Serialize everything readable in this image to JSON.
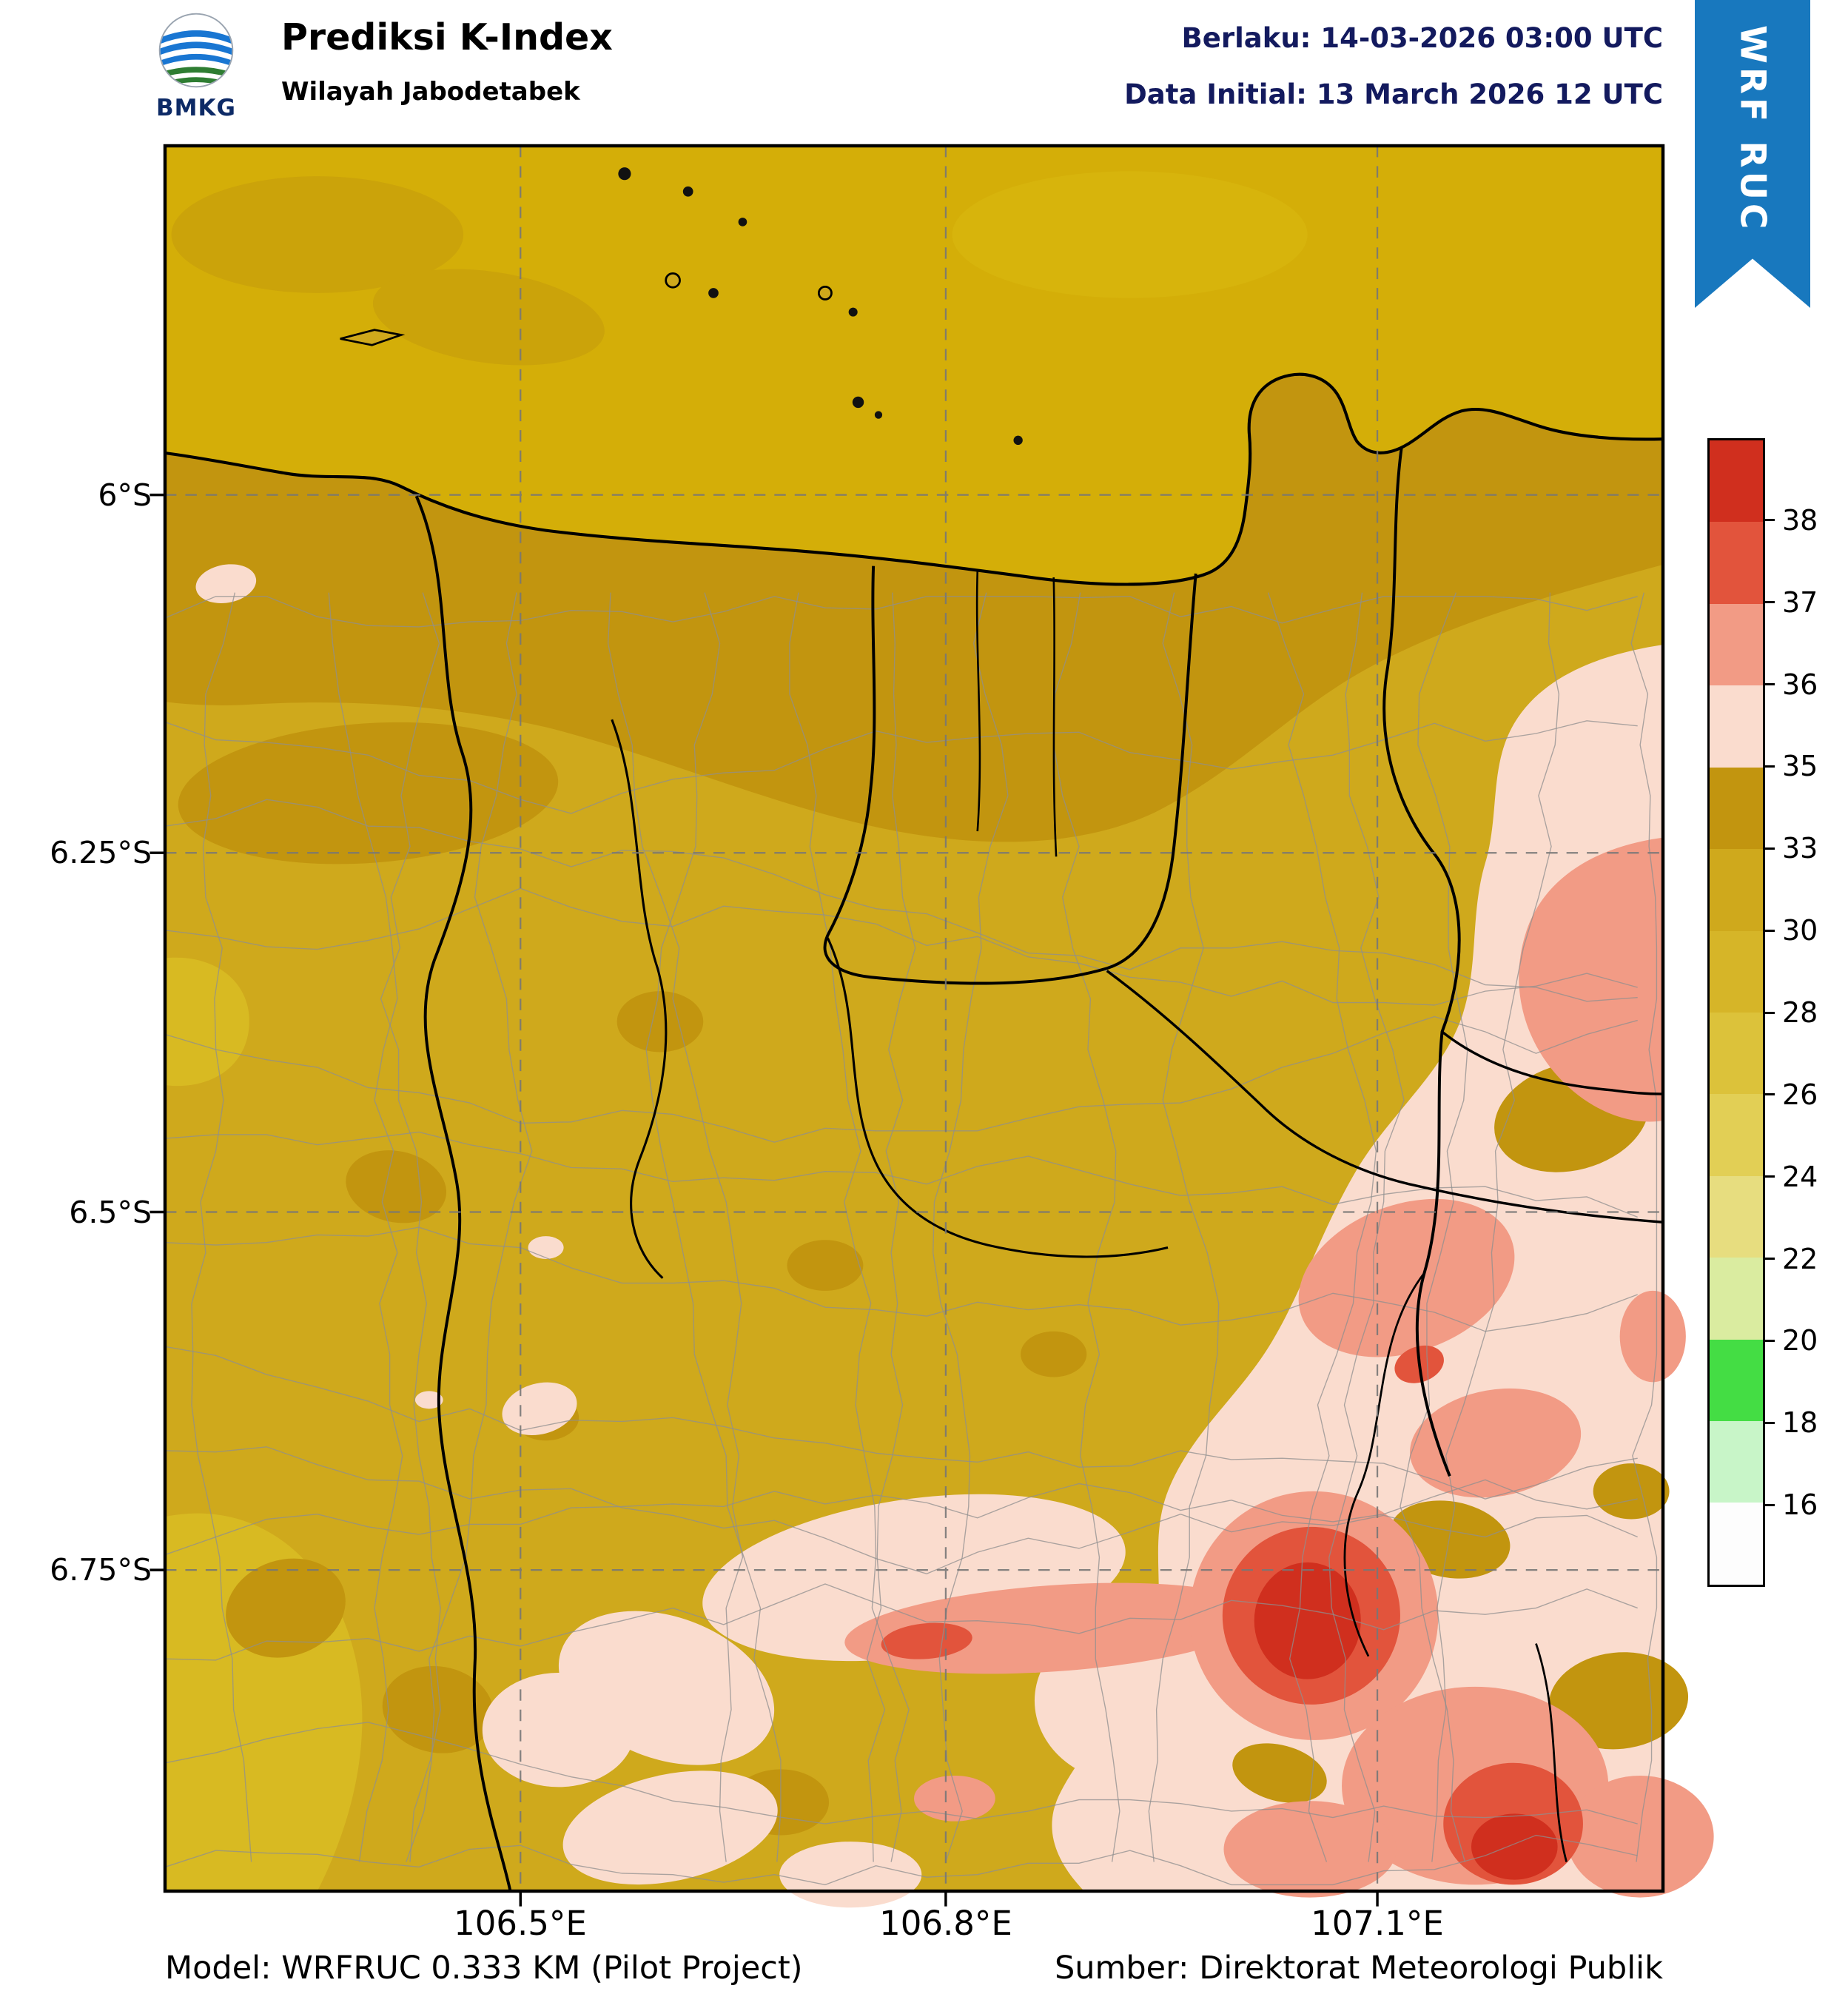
{
  "header": {
    "agency": "BMKG",
    "title": "Prediksi K-Index",
    "subtitle": "Wilayah Jabodetabek",
    "valid": "Berlaku: 14-03-2026 03:00 UTC",
    "data_initial": "Data Initial: 13 March 2026 12 UTC",
    "ribbon": "WRF RUC"
  },
  "map": {
    "x_ticks": [
      "106.5°E",
      "106.8°E",
      "107.1°E"
    ],
    "y_ticks": [
      "6°S",
      "6.25°S",
      "6.5°S",
      "6.75°S"
    ]
  },
  "colorbar": {
    "ticks": [
      "38",
      "37",
      "36",
      "35",
      "33",
      "30",
      "28",
      "26",
      "24",
      "22",
      "20",
      "18",
      "16"
    ],
    "segments_top_to_bottom": [
      "#d02f1e",
      "#e2543c",
      "#f29b85",
      "#fadcce",
      "#c2950f",
      "#cfa91c",
      "#d6b528",
      "#dcc23a",
      "#e2cf55",
      "#e7dd7f",
      "#daeca0",
      "#44dd44",
      "#c8f5c8",
      "#fdfdfd"
    ]
  },
  "footer": {
    "model": "Model: WRFRUC 0.333 KM (Pilot Project)",
    "source": "Sumber: Direktorat Meteorologi Publik"
  },
  "colors": {
    "ribbon_blue": "#1878be",
    "header_text": "#131a5e",
    "sea_gold": "#d4ae08",
    "k30_33": "#cfa91c",
    "k33_35": "#c2950f",
    "k35_36": "#fadcce",
    "k36_37": "#f29b85",
    "k37_38": "#e2543c",
    "k38_plus": "#d02f1e"
  }
}
